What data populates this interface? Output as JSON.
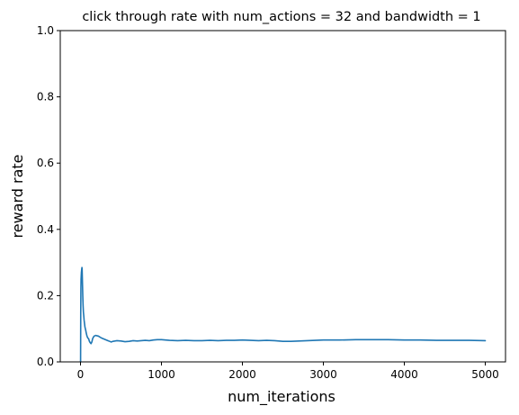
{
  "chart_data": {
    "type": "line",
    "title": "click through rate with num_actions = 32 and bandwidth = 1",
    "xlabel": "num_iterations",
    "ylabel": "reward rate",
    "xlim": [
      -250,
      5250
    ],
    "ylim": [
      0,
      1
    ],
    "xticks": [
      0,
      1000,
      2000,
      3000,
      4000,
      5000
    ],
    "xtick_labels": [
      "0",
      "1000",
      "2000",
      "3000",
      "4000",
      "5000"
    ],
    "yticks": [
      0.0,
      0.2,
      0.4,
      0.6,
      0.8,
      1.0
    ],
    "ytick_labels": [
      "0.0",
      "0.2",
      "0.4",
      "0.6",
      "0.8",
      "1.0"
    ],
    "grid": false,
    "legend": false,
    "series": [
      {
        "color": "#1f77b4",
        "x": [
          1,
          3,
          5,
          7,
          9,
          11,
          13,
          15,
          18,
          20,
          24,
          28,
          32,
          36,
          40,
          45,
          50,
          55,
          60,
          65,
          70,
          80,
          90,
          100,
          110,
          120,
          130,
          140,
          150,
          160,
          170,
          180,
          190,
          200,
          220,
          240,
          260,
          280,
          300,
          320,
          340,
          360,
          380,
          400,
          450,
          500,
          550,
          600,
          650,
          700,
          750,
          800,
          850,
          900,
          950,
          1000,
          1100,
          1200,
          1300,
          1400,
          1500,
          1600,
          1700,
          1800,
          1900,
          2000,
          2100,
          2200,
          2300,
          2400,
          2500,
          2600,
          2700,
          2800,
          2900,
          3000,
          3200,
          3400,
          3600,
          3800,
          4000,
          4200,
          4400,
          4600,
          4800,
          5000
        ],
        "y": [
          0.0,
          0.15,
          0.22,
          0.25,
          0.26,
          0.27,
          0.275,
          0.28,
          0.285,
          0.28,
          0.24,
          0.2,
          0.17,
          0.15,
          0.14,
          0.125,
          0.115,
          0.105,
          0.1,
          0.095,
          0.088,
          0.078,
          0.072,
          0.07,
          0.062,
          0.058,
          0.055,
          0.06,
          0.07,
          0.075,
          0.078,
          0.079,
          0.08,
          0.079,
          0.078,
          0.075,
          0.072,
          0.07,
          0.068,
          0.066,
          0.064,
          0.062,
          0.06,
          0.062,
          0.064,
          0.063,
          0.061,
          0.062,
          0.064,
          0.063,
          0.064,
          0.065,
          0.064,
          0.066,
          0.067,
          0.067,
          0.065,
          0.064,
          0.065,
          0.064,
          0.064,
          0.065,
          0.064,
          0.065,
          0.065,
          0.066,
          0.065,
          0.064,
          0.065,
          0.064,
          0.062,
          0.062,
          0.063,
          0.064,
          0.065,
          0.066,
          0.066,
          0.067,
          0.067,
          0.067,
          0.066,
          0.066,
          0.065,
          0.065,
          0.065,
          0.064
        ]
      }
    ]
  }
}
